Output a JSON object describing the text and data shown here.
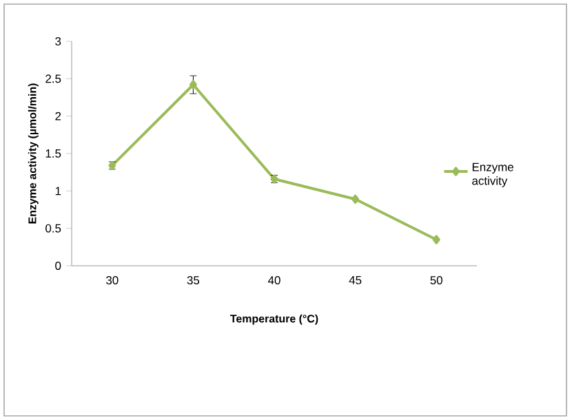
{
  "chart_data": {
    "type": "line",
    "xlabel": "Temperature (°C)",
    "ylabel": "Enzyme activity (µmol/min)",
    "categories": [
      "30",
      "35",
      "40",
      "45",
      "50"
    ],
    "series": [
      {
        "name": "Enzyme activity",
        "color": "#9bbb59",
        "values": [
          1.34,
          2.42,
          1.16,
          0.89,
          0.35
        ],
        "errors": [
          0.05,
          0.12,
          0.05,
          null,
          null
        ]
      }
    ],
    "ylim": [
      0,
      3
    ],
    "yticks": [
      0,
      0.5,
      1,
      1.5,
      2,
      2.5,
      3
    ],
    "grid": false,
    "legend": "right",
    "marker": "diamond",
    "line_style": "solid"
  }
}
